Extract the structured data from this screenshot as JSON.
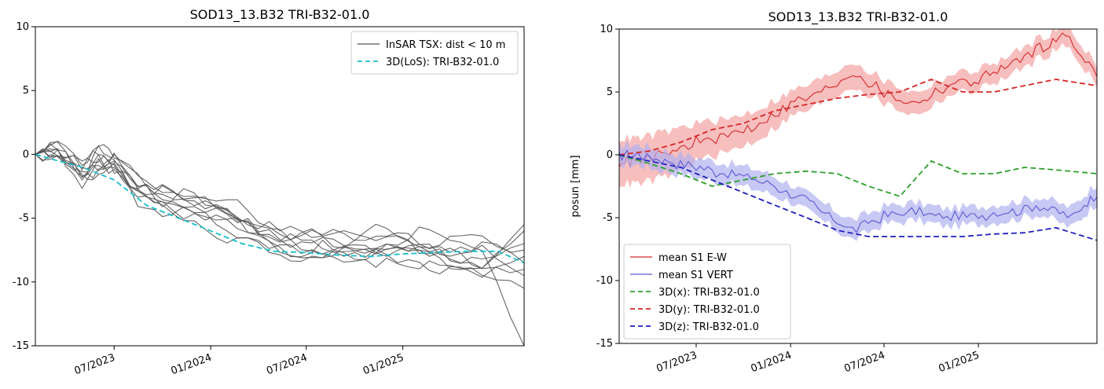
{
  "chart_data": [
    {
      "type": "line",
      "title": "SOD13_13.B32 TRI-B32-01.0",
      "xlabel": "",
      "ylabel": "",
      "ylim": [
        -15,
        10
      ],
      "yticks": [
        10,
        5,
        0,
        -5,
        -10,
        -15
      ],
      "xticks": [
        "07/2023",
        "01/2024",
        "07/2024",
        "01/2025"
      ],
      "xlim": [
        "2023-02-01",
        "2025-08-20"
      ],
      "grid": false,
      "legend_position": "top-right",
      "legend": [
        "InSAR TSX: dist < 10 m",
        "3D(LoS): TRI-B32-01.0"
      ],
      "series": [
        {
          "name": "InSAR TSX: dist < 10 m",
          "color": "#555555",
          "style": "solid",
          "count": 10,
          "dates": [
            "2023-02-01",
            "2023-03-15",
            "2023-05-01",
            "2023-06-01",
            "2023-07-01",
            "2023-08-15",
            "2023-10-01",
            "2023-12-01",
            "2024-02-01",
            "2024-04-01",
            "2024-06-01",
            "2024-08-01",
            "2024-10-01",
            "2024-12-01",
            "2025-02-01",
            "2025-04-01",
            "2025-06-01",
            "2025-08-20"
          ],
          "mean": [
            0,
            0.5,
            -1.5,
            -0.5,
            -0.7,
            -2.5,
            -3.5,
            -4.0,
            -5.0,
            -6.0,
            -7.0,
            -7.5,
            -7.4,
            -7.2,
            -7.5,
            -7.8,
            -8.0,
            -7.0
          ],
          "offsets": [
            0.0,
            -0.5,
            0.5,
            -1.0,
            1.0,
            -0.3,
            0.3,
            -0.8,
            0.8,
            -0.2
          ],
          "end_values": [
            -6.0,
            -7.0,
            -7.5,
            -8.0,
            -8.5,
            -9.0,
            -9.5,
            -10.5,
            -15.0,
            -5.5
          ]
        },
        {
          "name": "3D(LoS): TRI-B32-01.0",
          "color": "#17becf",
          "style": "dashed",
          "dates": [
            "2023-02-01",
            "2023-03-15",
            "2023-05-01",
            "2023-07-01",
            "2023-09-01",
            "2023-11-01",
            "2024-01-01",
            "2024-03-01",
            "2024-05-01",
            "2024-07-01",
            "2024-09-01",
            "2024-11-01",
            "2025-01-01",
            "2025-03-01",
            "2025-05-01",
            "2025-07-01",
            "2025-08-20"
          ],
          "values": [
            0,
            -0.5,
            -1.0,
            -2.0,
            -4.0,
            -5.0,
            -6.0,
            -7.0,
            -7.6,
            -7.7,
            -7.9,
            -8.0,
            -7.8,
            -7.7,
            -7.6,
            -7.6,
            -8.5
          ]
        }
      ]
    },
    {
      "type": "line",
      "title": "SOD13_13.B32 TRI-B32-01.0",
      "xlabel": "",
      "ylabel": "posun [mm]",
      "ylim": [
        -15,
        10
      ],
      "yticks": [
        10,
        5,
        0,
        -5,
        -10,
        -15
      ],
      "xticks": [
        "07/2023",
        "01/2024",
        "07/2024",
        "01/2025"
      ],
      "xlim": [
        "2023-02-01",
        "2025-08-20"
      ],
      "grid": false,
      "legend_position": "bottom-left",
      "legend": [
        "mean S1 E-W",
        "mean S1 VERT",
        "3D(x): TRI-B32-01.0",
        "3D(y): TRI-B32-01.0",
        "3D(z): TRI-B32-01.0"
      ],
      "series": [
        {
          "name": "mean S1 E-W",
          "color": "#d62728",
          "style": "solid",
          "band_color": "#f4a3a3",
          "dates": [
            "2023-02-01",
            "2023-03-15",
            "2023-05-01",
            "2023-07-01",
            "2023-09-01",
            "2023-11-01",
            "2024-01-01",
            "2024-03-01",
            "2024-05-01",
            "2024-07-01",
            "2024-09-01",
            "2024-11-01",
            "2025-01-01",
            "2025-03-01",
            "2025-05-01",
            "2025-06-20",
            "2025-08-20"
          ],
          "values": [
            -0.5,
            -0.5,
            0.0,
            1.0,
            1.5,
            2.5,
            4.0,
            5.0,
            6.5,
            5.0,
            4.0,
            5.5,
            6.0,
            7.0,
            8.5,
            9.5,
            6.5
          ],
          "band": [
            1.8,
            1.8,
            1.8,
            1.5,
            1.3,
            1.2,
            1.0,
            1.0,
            1.0,
            0.9,
            0.9,
            0.8,
            0.8,
            0.8,
            0.8,
            0.8,
            0.8
          ]
        },
        {
          "name": "mean S1 VERT",
          "color": "#5a5ad6",
          "style": "solid",
          "band_color": "#b0b0f0",
          "dates": [
            "2023-02-01",
            "2023-03-15",
            "2023-05-01",
            "2023-07-01",
            "2023-09-01",
            "2023-11-01",
            "2024-01-01",
            "2024-03-01",
            "2024-05-01",
            "2024-07-01",
            "2024-09-01",
            "2024-11-01",
            "2025-01-01",
            "2025-03-01",
            "2025-05-01",
            "2025-07-01",
            "2025-08-20"
          ],
          "values": [
            0,
            0,
            -0.5,
            -1.0,
            -1.5,
            -2.0,
            -3.0,
            -4.5,
            -6.0,
            -4.8,
            -4.5,
            -5.0,
            -4.8,
            -4.5,
            -4.0,
            -5.0,
            -3.0
          ],
          "band": [
            0.8,
            0.8,
            0.8,
            0.8,
            0.8,
            0.8,
            0.7,
            0.7,
            0.8,
            0.7,
            0.7,
            0.7,
            0.7,
            0.7,
            0.7,
            0.8,
            0.8
          ]
        },
        {
          "name": "3D(x): TRI-B32-01.0",
          "color": "#2ca02c",
          "style": "dashed",
          "dates": [
            "2023-02-01",
            "2023-04-01",
            "2023-06-01",
            "2023-08-01",
            "2023-10-01",
            "2023-12-01",
            "2024-02-01",
            "2024-04-01",
            "2024-06-01",
            "2024-08-01",
            "2024-10-01",
            "2024-12-01",
            "2025-02-01",
            "2025-04-01",
            "2025-06-01",
            "2025-08-20"
          ],
          "values": [
            0,
            -0.7,
            -1.5,
            -2.5,
            -2.0,
            -1.5,
            -1.3,
            -1.5,
            -2.5,
            -3.3,
            -0.5,
            -1.5,
            -1.5,
            -1.0,
            -1.2,
            -1.5
          ]
        },
        {
          "name": "3D(y): TRI-B32-01.0",
          "color": "#d62728",
          "style": "dashed",
          "dates": [
            "2023-02-01",
            "2023-04-01",
            "2023-06-01",
            "2023-08-01",
            "2023-10-01",
            "2023-12-01",
            "2024-02-01",
            "2024-04-01",
            "2024-06-01",
            "2024-08-01",
            "2024-10-01",
            "2024-12-01",
            "2025-02-01",
            "2025-04-01",
            "2025-06-01",
            "2025-08-20"
          ],
          "values": [
            0,
            0.3,
            1.0,
            2.0,
            2.5,
            3.5,
            4.0,
            4.5,
            4.8,
            5.0,
            6.0,
            5.0,
            5.0,
            5.5,
            6.0,
            5.5
          ]
        },
        {
          "name": "3D(z): TRI-B32-01.0",
          "color": "#1f1fbf",
          "style": "dashed",
          "dates": [
            "2023-02-01",
            "2023-04-01",
            "2023-06-01",
            "2023-08-01",
            "2023-10-01",
            "2023-12-01",
            "2024-02-01",
            "2024-04-01",
            "2024-06-01",
            "2024-08-01",
            "2024-10-01",
            "2024-12-01",
            "2025-02-01",
            "2025-04-01",
            "2025-06-01",
            "2025-08-20"
          ],
          "values": [
            0,
            -0.5,
            -1.0,
            -2.0,
            -3.0,
            -4.0,
            -5.0,
            -6.0,
            -6.5,
            -6.5,
            -6.5,
            -6.5,
            -6.3,
            -6.2,
            -5.8,
            -6.8
          ]
        }
      ]
    }
  ]
}
